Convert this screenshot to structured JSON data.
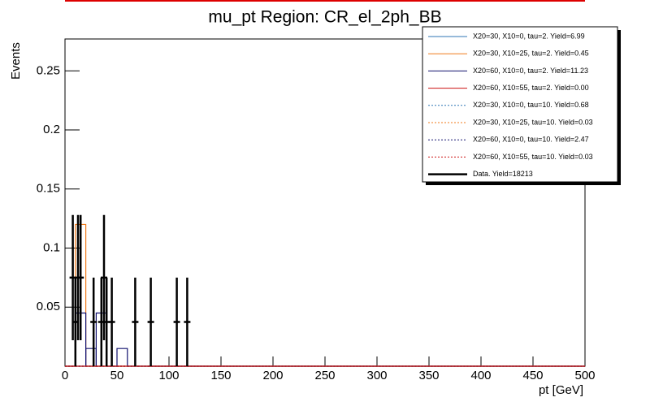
{
  "chart_data": {
    "type": "histogram",
    "title": "mu_pt Region: CR_el_2ph_BB",
    "x_label": "pt [GeV]",
    "y_label": "Events",
    "xlim": [
      0,
      500
    ],
    "ylim": [
      0,
      0.277
    ],
    "xticks": [
      0,
      50,
      100,
      150,
      200,
      250,
      300,
      350,
      400,
      450,
      500
    ],
    "yticks": [
      0.05,
      0.1,
      0.15,
      0.2,
      0.25
    ],
    "bins": [
      0,
      10,
      20,
      30,
      40,
      50,
      60,
      70,
      80,
      500
    ],
    "legend": "upper right",
    "series": [
      {
        "name": "X20=30, X10=0, tau=2. Yield=6.99",
        "color": "#2f76b5",
        "line_style": "solid",
        "values": [
          0,
          0,
          0,
          0,
          0,
          0,
          0,
          0,
          0
        ]
      },
      {
        "name": "X20=30, X10=25, tau=2. Yield=0.45",
        "color": "#f07a1a",
        "line_style": "solid",
        "values": [
          0,
          0.12,
          0,
          0,
          0,
          0,
          0,
          0,
          0
        ]
      },
      {
        "name": "X20=60, X10=0, tau=2. Yield=11.23",
        "color": "#10106e",
        "line_style": "solid",
        "values": [
          0,
          0.045,
          0.015,
          0.045,
          0,
          0.015,
          0,
          0,
          0
        ]
      },
      {
        "name": "X20=60, X10=55, tau=2. Yield=0.00",
        "color": "#cc1010",
        "line_style": "solid",
        "values": [
          0,
          0,
          0,
          0,
          0,
          0,
          0,
          0,
          0
        ]
      },
      {
        "name": "X20=30, X10=0, tau=10. Yield=0.68",
        "color": "#2f76b5",
        "line_style": "dotted",
        "values": [
          0,
          0,
          0,
          0,
          0,
          0,
          0,
          0,
          0
        ]
      },
      {
        "name": "X20=30, X10=25, tau=10. Yield=0.03",
        "color": "#f07a1a",
        "line_style": "dotted",
        "values": [
          0,
          0,
          0,
          0,
          0,
          0,
          0,
          0,
          0
        ]
      },
      {
        "name": "X20=60, X10=0, tau=10. Yield=2.47",
        "color": "#10106e",
        "line_style": "dotted",
        "values": [
          0,
          0,
          0,
          0,
          0,
          0,
          0,
          0,
          0
        ]
      },
      {
        "name": "X20=60, X10=55, tau=10. Yield=0.03",
        "color": "#cc1010",
        "line_style": "dotted",
        "values": [
          0,
          0,
          0,
          0,
          0,
          0,
          0,
          0,
          0
        ]
      },
      {
        "name": "Data. Yield=18213",
        "color": "#000000",
        "line_style": "points",
        "x": [
          7.5,
          10,
          12.5,
          15,
          27.5,
          35,
          37.5,
          40,
          45,
          67.5,
          82.5,
          107.5,
          117.5
        ],
        "values": [
          0.075,
          0.0375,
          0.075,
          0.075,
          0.0375,
          0.0375,
          0.075,
          0.0375,
          0.0375,
          0.0375,
          0.0375,
          0.0375,
          0.0375
        ],
        "errors": [
          0.053,
          0.0375,
          0.053,
          0.053,
          0.0375,
          0.0375,
          0.053,
          0.0375,
          0.0375,
          0.0375,
          0.0375,
          0.0375,
          0.0375
        ]
      }
    ]
  }
}
